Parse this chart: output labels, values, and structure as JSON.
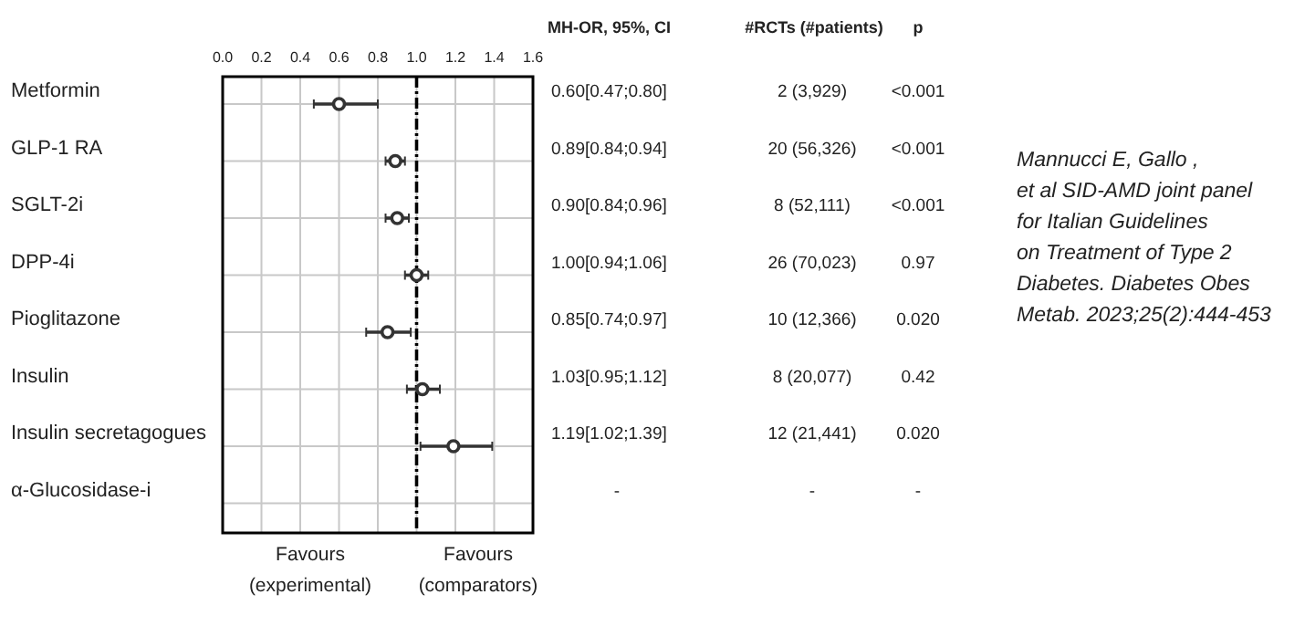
{
  "chart_data": {
    "type": "scatter",
    "orientation": "horizontal",
    "categories": [
      "Metformin",
      "GLP-1 RA",
      "SGLT-2i",
      "DPP-4i",
      "Pioglitazone",
      "Insulin",
      "Insulin secretagogues",
      "α-Glucosidase-i"
    ],
    "values": [
      0.6,
      0.89,
      0.9,
      1.0,
      0.85,
      1.03,
      1.19,
      null
    ],
    "errors": [
      [
        0.47,
        0.8
      ],
      [
        0.84,
        0.94
      ],
      [
        0.84,
        0.96
      ],
      [
        0.94,
        1.06
      ],
      [
        0.74,
        0.97
      ],
      [
        0.95,
        1.12
      ],
      [
        1.02,
        1.39
      ],
      null
    ],
    "value_labels": [
      "0.60[0.47;0.80]",
      "0.89[0.84;0.94]",
      "0.90[0.84;0.96]",
      "1.00[0.94;1.06]",
      "0.85[0.74;0.97]",
      "1.03[0.95;1.12]",
      "1.19[1.02;1.39]",
      "-"
    ],
    "color": "#333333",
    "marker": "circle",
    "grid": true,
    "xlim": [
      0,
      1.6
    ],
    "xticks": [
      {
        "value": 0,
        "label": "0.0"
      },
      0.2,
      0.4,
      0.6,
      0.8,
      {
        "value": 1,
        "label": "1.0"
      },
      1.2,
      1.4,
      1.6
    ],
    "ref_lines": [
      {
        "axis": "x",
        "value": 1,
        "line_style": "dashdot",
        "color": "#000000"
      }
    ],
    "annotations": [
      "MH-OR, 95%, CI",
      "#RCTs (#patients)",
      "p",
      "Favours\n(experimental)",
      "Favours\n(comparators)",
      "Mannucci E, Gallo ,\net al SID-AMD joint panel\nfor Italian Guidelines\non Treatment of Type 2\nDiabetes. Diabetes Obes\nMetab. 2023;25(2):444-453",
      "2 (3,929)",
      "20 (56,326)",
      "8 (52,111)",
      "26 (70,023)",
      "10 (12,366)",
      "8 (20,077)",
      "12 (21,441)",
      "-",
      "<0.001",
      "<0.001",
      "<0.001",
      "0.97",
      "0.020",
      "0.42",
      "0.020",
      "-"
    ]
  }
}
